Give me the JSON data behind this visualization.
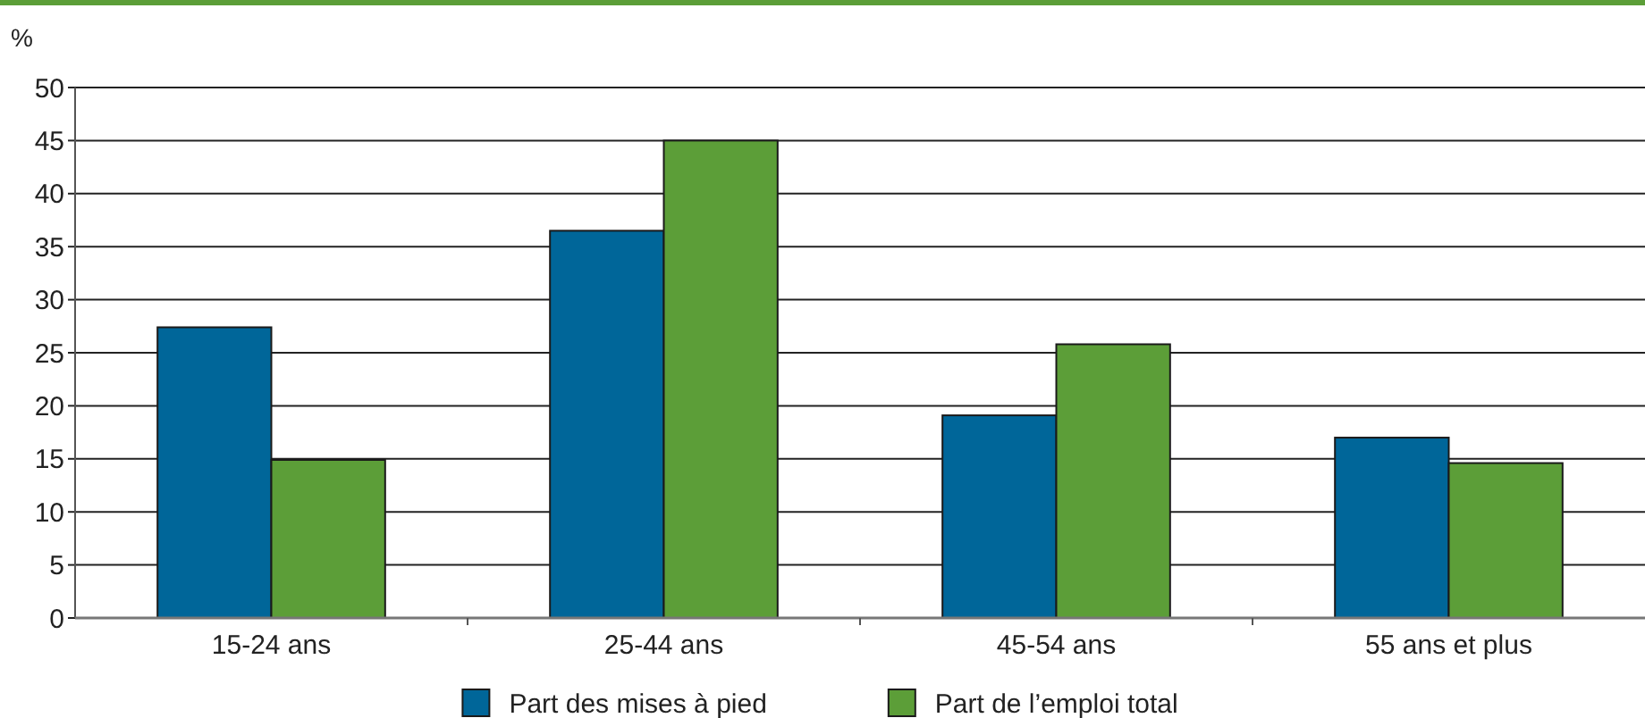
{
  "chart_data": {
    "type": "bar",
    "ylabel": "%",
    "categories": [
      "15-24 ans",
      "25-44 ans",
      "45-54 ans",
      "55 ans et plus"
    ],
    "series": [
      {
        "name": "Part des mises à pied",
        "color": "#006699",
        "values": [
          27.4,
          36.5,
          19.1,
          17.0
        ]
      },
      {
        "name": "Part de l’emploi total",
        "color": "#5c9e38",
        "values": [
          14.9,
          45,
          25.8,
          14.6
        ]
      }
    ],
    "ylim": [
      0,
      50
    ],
    "yticks": [
      0,
      5,
      10,
      15,
      20,
      25,
      30,
      35,
      40,
      45,
      50
    ],
    "grid": "y",
    "legend": "bottom"
  }
}
